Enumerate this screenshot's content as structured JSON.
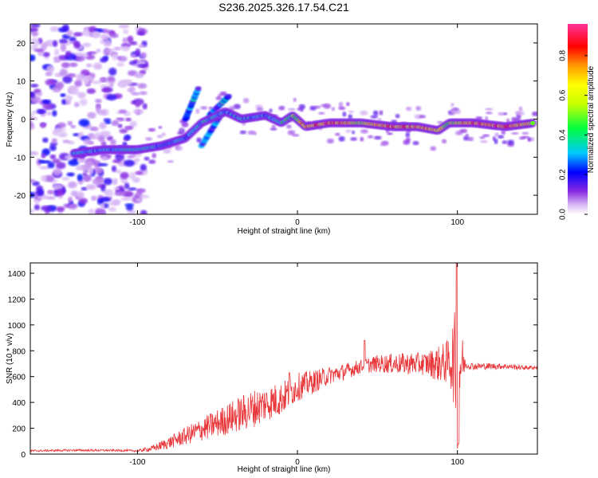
{
  "title": "S236.2025.326.17.54.C21",
  "chart_data": [
    {
      "type": "heatmap",
      "xlabel": "Height of straight line (km)",
      "ylabel": "Frequency (Hz)",
      "xlim": [
        -167,
        150
      ],
      "ylim": [
        -25,
        25
      ],
      "x_ticks": [
        -100,
        0,
        100
      ],
      "y_ticks": [
        -20,
        -10,
        0,
        10,
        20
      ],
      "colorbar": {
        "label": "Normalized spectral amplitude",
        "range": [
          0,
          0.96
        ],
        "ticks": [
          0.0,
          0.2,
          0.4,
          0.6,
          0.8
        ],
        "tick_labels": [
          "0.0",
          "0.2",
          "0.4",
          "0.6",
          "0.8"
        ]
      },
      "ridge": {
        "description": "dominant frequency track",
        "x": [
          -140,
          -120,
          -100,
          -85,
          -70,
          -60,
          -45,
          -35,
          -20,
          -10,
          -3,
          5,
          20,
          40,
          60,
          75,
          88,
          95,
          110,
          130,
          148
        ],
        "y": [
          -9,
          -8,
          -8,
          -7,
          -5,
          -1,
          2,
          0,
          1,
          -1,
          1,
          -2,
          -1,
          -1,
          -2,
          -2,
          -3,
          -1,
          -1,
          -2,
          -1
        ],
        "amplitude": [
          0.35,
          0.3,
          0.35,
          0.3,
          0.3,
          0.35,
          0.3,
          0.35,
          0.3,
          0.4,
          0.5,
          0.75,
          0.85,
          0.6,
          0.8,
          0.75,
          0.7,
          0.5,
          0.85,
          0.9,
          0.6
        ]
      },
      "branches": [
        {
          "x": [
            -70,
            -62
          ],
          "y": [
            0,
            8
          ]
        },
        {
          "x": [
            -60,
            -48
          ],
          "y": [
            -7,
            1
          ]
        },
        {
          "x": [
            -55,
            -43
          ],
          "y": [
            1,
            6
          ]
        }
      ],
      "noise_region": {
        "x": [
          -167,
          -95
        ],
        "y": [
          -25,
          25
        ]
      }
    },
    {
      "type": "line",
      "xlabel": "Height of straight line (km)",
      "ylabel": "SNR (10 * v/v)",
      "xlim": [
        -167,
        150
      ],
      "ylim": [
        0,
        1480
      ],
      "x_ticks": [
        -100,
        0,
        100
      ],
      "y_ticks": [
        0,
        200,
        400,
        600,
        800,
        1000,
        1200,
        1400
      ],
      "color": "#e8383b",
      "envelope": {
        "x": [
          -167,
          -140,
          -110,
          -100,
          -90,
          -80,
          -70,
          -60,
          -50,
          -40,
          -30,
          -20,
          -10,
          0,
          10,
          20,
          30,
          40,
          50,
          60,
          70,
          80,
          90,
          95,
          98,
          100,
          102,
          105,
          110,
          120,
          130,
          140,
          150
        ],
        "y": [
          25,
          30,
          28,
          25,
          45,
          90,
          140,
          190,
          240,
          290,
          340,
          390,
          430,
          520,
          560,
          610,
          640,
          680,
          700,
          700,
          700,
          700,
          700,
          720,
          740,
          500,
          720,
          690,
          680,
          680,
          680,
          670,
          670
        ]
      },
      "noise_amplitude": {
        "x": [
          -167,
          -100,
          -90,
          -70,
          -50,
          -30,
          -10,
          0,
          20,
          40,
          60,
          80,
          95,
          100,
          105,
          150
        ],
        "y": [
          8,
          8,
          25,
          70,
          110,
          150,
          130,
          110,
          70,
          55,
          80,
          90,
          180,
          500,
          30,
          15
        ]
      },
      "peaks": [
        {
          "x": 99.5,
          "y": 1480
        },
        {
          "x": 100.8,
          "y": 80
        },
        {
          "x": -5,
          "y": 630
        },
        {
          "x": 42,
          "y": 880
        }
      ]
    }
  ]
}
